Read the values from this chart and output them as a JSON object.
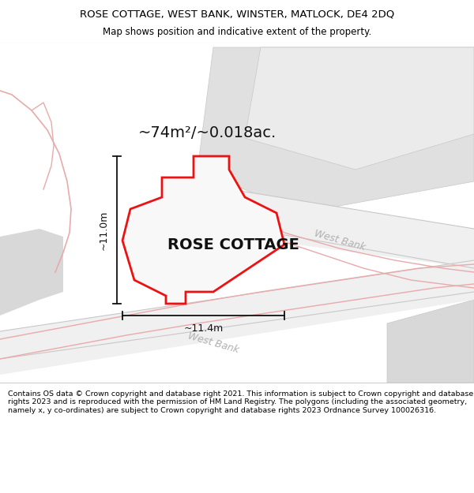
{
  "title_line1": "ROSE COTTAGE, WEST BANK, WINSTER, MATLOCK, DE4 2DQ",
  "title_line2": "Map shows position and indicative extent of the property.",
  "area_label": "~74m²/~0.018ac.",
  "property_label": "ROSE COTTAGE",
  "width_label": "~11.4m",
  "height_label": "~11.0m",
  "footer_text": "Contains OS data © Crown copyright and database right 2021. This information is subject to Crown copyright and database rights 2023 and is reproduced with the permission of HM Land Registry. The polygons (including the associated geometry, namely x, y co-ordinates) are subject to Crown copyright and database rights 2023 Ordnance Survey 100026316.",
  "bg_white": "#ffffff",
  "bg_light": "#f5f5f5",
  "gray_fill": "#e0e0e0",
  "gray_fill2": "#d8d8d8",
  "gray_fill3": "#ebebeb",
  "road_pink": "#e8aaaa",
  "road_pink2": "#d9a0a0",
  "road_gray_line": "#c8c8c8",
  "prop_red": "#ee1111",
  "prop_fill": "#f8f8f8",
  "dim_black": "#111111",
  "label_gray": "#b0b0b0",
  "title_fontsize": 9.5,
  "subtitle_fontsize": 8.5,
  "area_fontsize": 14,
  "prop_label_fontsize": 14,
  "dim_fontsize": 9,
  "road_label_fontsize": 9,
  "footer_fontsize": 6.8
}
